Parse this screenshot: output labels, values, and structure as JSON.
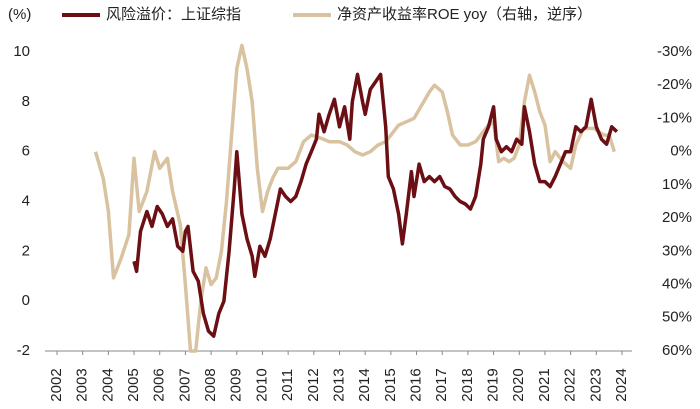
{
  "chart_data": {
    "type": "line",
    "y_unit_label": "(%)",
    "xlim": [
      2002,
      2024
    ],
    "xticks": [
      2002,
      2003,
      2004,
      2005,
      2006,
      2007,
      2008,
      2009,
      2010,
      2011,
      2012,
      2013,
      2014,
      2015,
      2016,
      2017,
      2018,
      2019,
      2020,
      2021,
      2022,
      2023,
      2024
    ],
    "ylim": [
      -2,
      10
    ],
    "yticks": [
      -2,
      0,
      2,
      4,
      6,
      8,
      10
    ],
    "y2lim": [
      -30,
      60
    ],
    "y2_reversed": true,
    "y2ticks": [
      {
        "value": -30,
        "label": "-30%"
      },
      {
        "value": -20,
        "label": "-20%"
      },
      {
        "value": -10,
        "label": "-10%"
      },
      {
        "value": 0,
        "label": "0%"
      },
      {
        "value": 10,
        "label": "10%"
      },
      {
        "value": 20,
        "label": "20%"
      },
      {
        "value": 30,
        "label": "30%"
      },
      {
        "value": 40,
        "label": "40%"
      },
      {
        "value": 50,
        "label": "50%"
      },
      {
        "value": 60,
        "label": "60%"
      }
    ],
    "legend": "top",
    "series": [
      {
        "name": "风险溢价：上证综指",
        "color": "#6b0f14",
        "axis": "y",
        "x": [
          2005.0,
          2005.1,
          2005.25,
          2005.5,
          2005.7,
          2005.9,
          2006.1,
          2006.3,
          2006.5,
          2006.7,
          2006.9,
          2007.0,
          2007.1,
          2007.3,
          2007.5,
          2007.7,
          2007.9,
          2008.1,
          2008.3,
          2008.5,
          2008.7,
          2008.9,
          2009.0,
          2009.2,
          2009.4,
          2009.6,
          2009.7,
          2009.9,
          2010.1,
          2010.3,
          2010.5,
          2010.7,
          2010.9,
          2011.1,
          2011.3,
          2011.5,
          2011.7,
          2011.9,
          2012.1,
          2012.2,
          2012.4,
          2012.6,
          2012.8,
          2013.0,
          2013.2,
          2013.4,
          2013.5,
          2013.7,
          2013.9,
          2014.0,
          2014.2,
          2014.4,
          2014.6,
          2014.8,
          2014.9,
          2015.1,
          2015.3,
          2015.45,
          2015.6,
          2015.8,
          2015.9,
          2016.1,
          2016.3,
          2016.5,
          2016.7,
          2016.9,
          2017.1,
          2017.3,
          2017.5,
          2017.7,
          2017.9,
          2018.1,
          2018.3,
          2018.5,
          2018.6,
          2018.8,
          2019.0,
          2019.1,
          2019.3,
          2019.5,
          2019.7,
          2019.9,
          2020.1,
          2020.2,
          2020.4,
          2020.6,
          2020.8,
          2021.0,
          2021.2,
          2021.4,
          2021.6,
          2021.8,
          2022.0,
          2022.2,
          2022.4,
          2022.6,
          2022.8,
          2023.0,
          2023.2,
          2023.4,
          2023.6,
          2023.8
        ],
        "values": [
          1.6,
          1.2,
          2.8,
          3.6,
          3.0,
          3.8,
          3.5,
          3.0,
          3.3,
          2.2,
          2.0,
          2.8,
          3.0,
          1.2,
          0.8,
          -0.5,
          -1.2,
          -1.4,
          -0.5,
          0.0,
          2.0,
          4.5,
          6.0,
          3.5,
          2.5,
          1.8,
          1.0,
          2.2,
          1.8,
          2.5,
          3.5,
          4.5,
          4.2,
          4.0,
          4.2,
          4.8,
          5.5,
          6.0,
          6.5,
          7.5,
          6.8,
          7.5,
          8.1,
          7.0,
          7.8,
          6.5,
          8.0,
          9.1,
          8.0,
          7.5,
          8.5,
          8.8,
          9.1,
          7.0,
          5.0,
          4.5,
          3.5,
          2.3,
          3.5,
          5.2,
          4.2,
          5.5,
          4.8,
          5.0,
          4.8,
          5.0,
          4.6,
          4.5,
          4.2,
          4.0,
          3.9,
          3.7,
          4.2,
          5.5,
          6.5,
          7.0,
          7.8,
          6.5,
          6.0,
          6.2,
          6.0,
          6.5,
          6.3,
          7.8,
          6.8,
          5.5,
          4.8,
          4.8,
          4.6,
          5.0,
          5.5,
          6.0,
          6.0,
          7.0,
          6.8,
          7.0,
          8.1,
          7.0,
          6.5,
          6.3,
          7.0,
          6.8
        ]
      },
      {
        "name": "净资产收益率ROE yoy（右轴，逆序）",
        "color": "#d9c2a0",
        "axis": "y2",
        "x": [
          2003.5,
          2003.8,
          2004.0,
          2004.2,
          2004.5,
          2004.8,
          2005.0,
          2005.2,
          2005.5,
          2005.8,
          2006.0,
          2006.3,
          2006.5,
          2006.8,
          2007.0,
          2007.2,
          2007.4,
          2007.6,
          2007.8,
          2008.0,
          2008.2,
          2008.4,
          2008.6,
          2008.8,
          2009.0,
          2009.2,
          2009.4,
          2009.6,
          2009.8,
          2010.0,
          2010.2,
          2010.4,
          2010.6,
          2010.8,
          2011.0,
          2011.3,
          2011.6,
          2011.9,
          2012.3,
          2012.6,
          2013.0,
          2013.3,
          2013.6,
          2013.9,
          2014.2,
          2014.5,
          2014.8,
          2015.0,
          2015.3,
          2015.6,
          2015.9,
          2016.2,
          2016.5,
          2016.7,
          2017.0,
          2017.2,
          2017.4,
          2017.7,
          2018.0,
          2018.3,
          2018.6,
          2018.8,
          2019.0,
          2019.2,
          2019.4,
          2019.6,
          2019.8,
          2020.0,
          2020.2,
          2020.4,
          2020.6,
          2020.8,
          2021.0,
          2021.2,
          2021.4,
          2021.7,
          2022.0,
          2022.2,
          2022.5,
          2022.7,
          2022.9,
          2023.1,
          2023.3,
          2023.5,
          2023.7
        ],
        "values": [
          0,
          8,
          18,
          38,
          32,
          25,
          2,
          18,
          12,
          0,
          5,
          2,
          12,
          22,
          40,
          60,
          60,
          45,
          35,
          40,
          38,
          30,
          15,
          -5,
          -25,
          -32,
          -25,
          -15,
          5,
          18,
          12,
          8,
          5,
          5,
          5,
          3,
          -3,
          -5,
          -4,
          -3,
          -3,
          -2,
          0,
          1,
          0,
          -2,
          -3,
          -5,
          -8,
          -9,
          -10,
          -14,
          -18,
          -20,
          -18,
          -12,
          -5,
          -2,
          -2,
          -3,
          -6,
          -8,
          -9,
          3,
          2,
          3,
          2,
          -2,
          -15,
          -23,
          -18,
          -12,
          -8,
          3,
          0,
          3,
          5,
          -2,
          -7,
          -7,
          -7,
          -6,
          -5,
          -5,
          0
        ]
      }
    ]
  }
}
